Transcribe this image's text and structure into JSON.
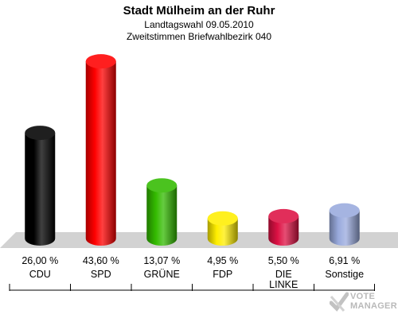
{
  "header": {
    "title": "Stadt Mülheim an der Ruhr",
    "subtitle1": "Landtagswahl 09.05.2010",
    "subtitle2": "Zweitstimmen Briefwahlbezirk 040"
  },
  "logo": {
    "line1": "VOTE",
    "line2": "MANAGER"
  },
  "chart_data": {
    "type": "bar",
    "title": "Stadt Mülheim an der Ruhr",
    "subtitle": "Landtagswahl 09.05.2010 / Zweitstimmen Briefwahlbezirk 040",
    "categories": [
      "CDU",
      "SPD",
      "GRÜNE",
      "FDP",
      "DIE LINKE",
      "Sonstige"
    ],
    "values": [
      26.0,
      43.6,
      13.07,
      4.95,
      5.5,
      6.91
    ],
    "value_labels": [
      "26,00 %",
      "43,60 %",
      "13,07 %",
      "4,95 %",
      "5,50 %",
      "6,91 %"
    ],
    "colors": [
      "#000000",
      "#ff0000",
      "#33bb00",
      "#ffee00",
      "#dd1144",
      "#99aadd"
    ],
    "unit": "%",
    "ylim": [
      0,
      45
    ],
    "grid": false,
    "legend": "none"
  }
}
